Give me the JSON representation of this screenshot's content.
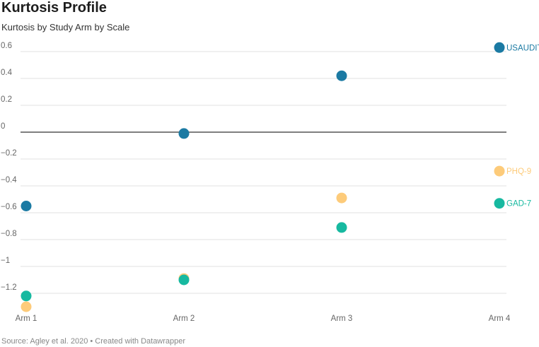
{
  "header": {
    "title": "Kurtosis Profile",
    "subtitle": "Kurtosis by Study Arm by Scale"
  },
  "footer": {
    "source": "Source: Agley et al. 2020 • Created with Datawrapper"
  },
  "chart_data": {
    "type": "scatter",
    "title": "Kurtosis Profile",
    "subtitle": "Kurtosis by Study Arm by Scale",
    "xlabel": "",
    "ylabel": "",
    "categories": [
      "Arm 1",
      "Arm 2",
      "Arm 3",
      "Arm 4"
    ],
    "y_ticks": [
      0.6,
      0.4,
      0.2,
      0,
      -0.2,
      -0.4,
      -0.6,
      -0.8,
      -1,
      -1.2
    ],
    "y_tick_labels": [
      "0.6",
      "0.4",
      "0.2",
      "0",
      "−0.2",
      "−0.4",
      "−0.6",
      "−0.8",
      "−1",
      "−1.2"
    ],
    "ylim": [
      -1.3,
      0.65
    ],
    "grid": true,
    "legend": "inline labels at right of last point",
    "series": [
      {
        "name": "USAUDIT",
        "color": "#1b7aa3",
        "values": [
          -0.55,
          -0.01,
          0.42,
          0.63
        ]
      },
      {
        "name": "PHQ-9",
        "color": "#fdcb7a",
        "values": [
          -1.3,
          -1.09,
          -0.49,
          -0.29
        ]
      },
      {
        "name": "GAD-7",
        "color": "#17b9a0",
        "values": [
          -1.22,
          -1.1,
          -0.71,
          -0.53
        ]
      }
    ]
  }
}
